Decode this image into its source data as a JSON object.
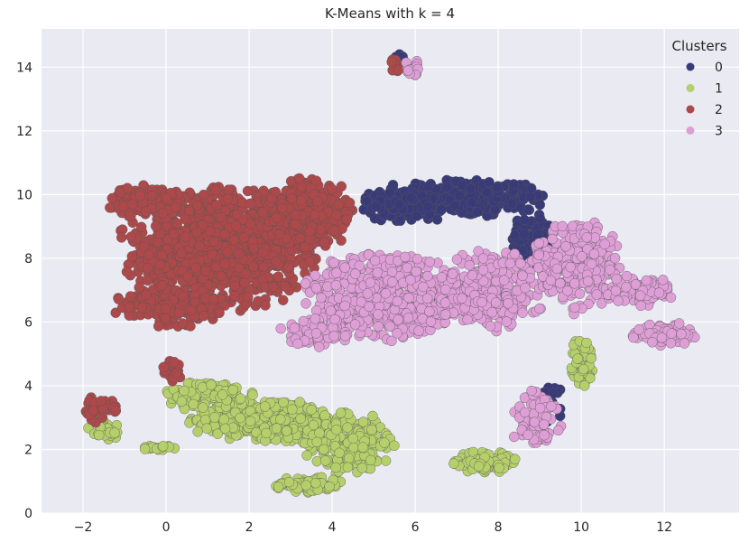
{
  "chart_data": {
    "type": "scatter",
    "title": "K-Means with k = 4",
    "xlabel": "",
    "ylabel": "",
    "xlim": [
      -3,
      13.8
    ],
    "ylim": [
      0,
      15.2
    ],
    "xticks": [
      -2,
      0,
      2,
      4,
      6,
      8,
      10,
      12
    ],
    "yticks": [
      0,
      2,
      4,
      6,
      8,
      10,
      12,
      14
    ],
    "xtick_labels": [
      "−2",
      "0",
      "2",
      "4",
      "6",
      "8",
      "10",
      "12"
    ],
    "ytick_labels": [
      "0",
      "2",
      "4",
      "6",
      "8",
      "10",
      "12",
      "14"
    ],
    "grid": true,
    "background": "#eaeaf2",
    "legend": {
      "title": "Clusters",
      "placement": "top-right",
      "entries": [
        "0",
        "1",
        "2",
        "3"
      ]
    },
    "series": [
      {
        "name": "0",
        "color": "#393b79",
        "regions": [
          {
            "cx": 7.0,
            "cy": 9.9,
            "rx": 2.3,
            "ry": 0.6,
            "n": 340
          },
          {
            "cx": 5.8,
            "cy": 9.6,
            "rx": 1.2,
            "ry": 0.5,
            "n": 120
          },
          {
            "cx": 8.8,
            "cy": 8.7,
            "rx": 0.5,
            "ry": 0.9,
            "n": 60
          },
          {
            "cx": 9.2,
            "cy": 3.4,
            "rx": 0.4,
            "ry": 0.7,
            "n": 30
          },
          {
            "cx": 5.65,
            "cy": 14.25,
            "rx": 0.15,
            "ry": 0.2,
            "n": 12
          }
        ]
      },
      {
        "name": "1",
        "color": "#b5cf6b",
        "regions": [
          {
            "cx": 2.5,
            "cy": 2.9,
            "rx": 2.0,
            "ry": 0.7,
            "n": 420
          },
          {
            "cx": 4.4,
            "cy": 2.2,
            "rx": 1.1,
            "ry": 1.0,
            "n": 220
          },
          {
            "cx": 3.4,
            "cy": 0.9,
            "rx": 0.9,
            "ry": 0.25,
            "n": 80
          },
          {
            "cx": 1.0,
            "cy": 3.7,
            "rx": 1.1,
            "ry": 0.5,
            "n": 120
          },
          {
            "cx": 7.7,
            "cy": 1.6,
            "rx": 0.8,
            "ry": 0.35,
            "n": 100
          },
          {
            "cx": 10.0,
            "cy": 4.7,
            "rx": 0.3,
            "ry": 0.8,
            "n": 60
          },
          {
            "cx": -1.5,
            "cy": 2.6,
            "rx": 0.4,
            "ry": 0.4,
            "n": 30
          },
          {
            "cx": -0.2,
            "cy": 2.05,
            "rx": 0.5,
            "ry": 0.1,
            "n": 20
          }
        ]
      },
      {
        "name": "2",
        "color": "#ad494a",
        "regions": [
          {
            "cx": 1.4,
            "cy": 8.3,
            "rx": 2.6,
            "ry": 2.0,
            "n": 950
          },
          {
            "cx": 3.4,
            "cy": 9.4,
            "rx": 1.2,
            "ry": 1.2,
            "n": 250
          },
          {
            "cx": -0.6,
            "cy": 9.8,
            "rx": 1.0,
            "ry": 0.5,
            "n": 120
          },
          {
            "cx": 0.1,
            "cy": 6.5,
            "rx": 1.4,
            "ry": 0.7,
            "n": 180
          },
          {
            "cx": -1.6,
            "cy": 3.3,
            "rx": 0.4,
            "ry": 0.5,
            "n": 40
          },
          {
            "cx": 0.2,
            "cy": 4.4,
            "rx": 0.3,
            "ry": 0.5,
            "n": 20
          },
          {
            "cx": 5.5,
            "cy": 14.0,
            "rx": 0.2,
            "ry": 0.3,
            "n": 10
          }
        ]
      },
      {
        "name": "3",
        "color": "#de9ed6",
        "regions": [
          {
            "cx": 5.3,
            "cy": 6.8,
            "rx": 2.2,
            "ry": 1.4,
            "n": 500
          },
          {
            "cx": 7.8,
            "cy": 7.0,
            "rx": 1.4,
            "ry": 1.3,
            "n": 300
          },
          {
            "cx": 9.9,
            "cy": 7.8,
            "rx": 1.1,
            "ry": 1.6,
            "n": 280
          },
          {
            "cx": 11.4,
            "cy": 7.0,
            "rx": 0.9,
            "ry": 0.5,
            "n": 90
          },
          {
            "cx": 12.0,
            "cy": 5.6,
            "rx": 0.8,
            "ry": 0.4,
            "n": 90
          },
          {
            "cx": 8.9,
            "cy": 3.0,
            "rx": 0.7,
            "ry": 0.9,
            "n": 80
          },
          {
            "cx": 3.6,
            "cy": 5.7,
            "rx": 0.9,
            "ry": 0.5,
            "n": 80
          },
          {
            "cx": 5.9,
            "cy": 14.0,
            "rx": 0.2,
            "ry": 0.3,
            "n": 15
          }
        ]
      }
    ]
  }
}
